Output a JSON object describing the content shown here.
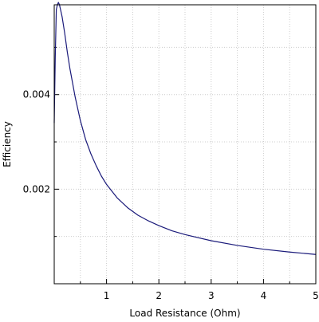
{
  "chart_data": {
    "type": "line",
    "title": "",
    "xlabel": "Load Resistance (Ohm)",
    "ylabel": "Efficiency",
    "xlim": [
      0,
      5
    ],
    "ylim": [
      0,
      0.0059
    ],
    "x_ticks": [
      {
        "value": 1,
        "label": "1"
      },
      {
        "value": 2,
        "label": "2"
      },
      {
        "value": 3,
        "label": "3"
      },
      {
        "value": 4,
        "label": "4"
      },
      {
        "value": 5,
        "label": "5"
      }
    ],
    "y_ticks": [
      {
        "value": 0.002,
        "label": "0.002"
      },
      {
        "value": 0.004,
        "label": "0.004"
      }
    ],
    "grid": true,
    "line_color": "#1a1a7a",
    "series": [
      {
        "x": [
          0.0,
          0.02,
          0.04,
          0.06,
          0.08,
          0.1,
          0.12,
          0.15,
          0.2,
          0.25,
          0.3,
          0.35,
          0.4,
          0.5,
          0.6,
          0.7,
          0.8,
          0.9,
          1.0,
          1.2,
          1.4,
          1.6,
          1.8,
          2.0,
          2.25,
          2.5,
          3.0,
          3.5,
          4.0,
          4.5,
          5.0
        ],
        "y": [
          0.0034,
          0.0048,
          0.0058,
          0.0059,
          0.00595,
          0.0059,
          0.0058,
          0.00565,
          0.0053,
          0.0049,
          0.00455,
          0.00425,
          0.00395,
          0.00345,
          0.00305,
          0.00275,
          0.0025,
          0.00228,
          0.0021,
          0.00182,
          0.00161,
          0.00145,
          0.00133,
          0.00123,
          0.00112,
          0.00104,
          0.00091,
          0.00081,
          0.00073,
          0.00067,
          0.00062
        ]
      }
    ]
  }
}
